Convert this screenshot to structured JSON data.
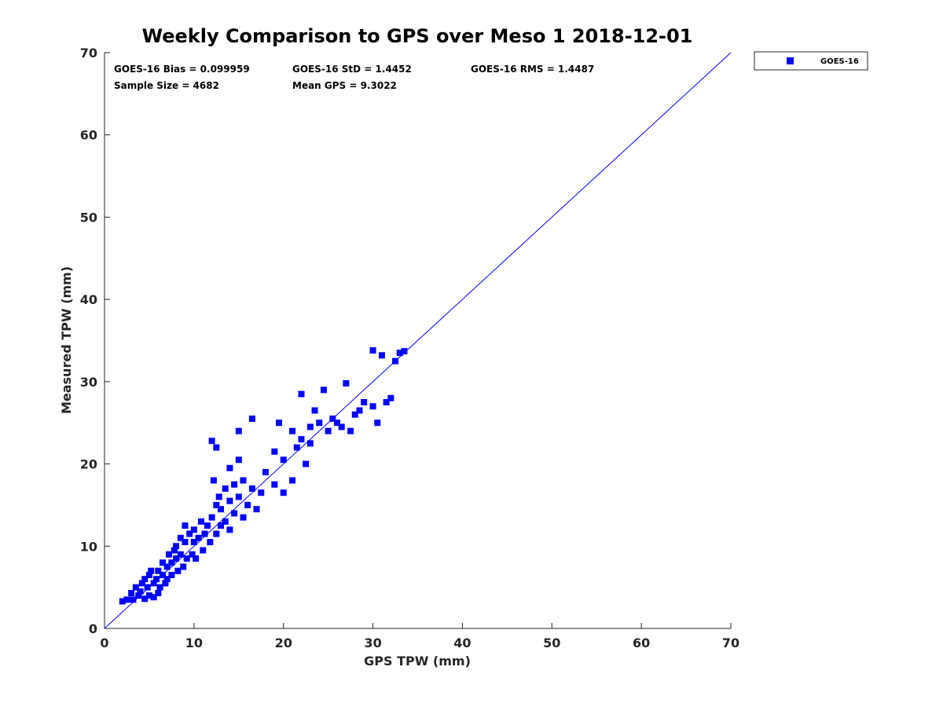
{
  "chart_data": {
    "type": "scatter",
    "title": "Weekly Comparison to GPS over Meso 1 2018-12-01",
    "xlabel": "GPS TPW (mm)",
    "ylabel": "Measured TPW (mm)",
    "xlim": [
      0,
      70
    ],
    "ylim": [
      0,
      70
    ],
    "xticks": [
      "0",
      "10",
      "20",
      "30",
      "40",
      "50",
      "60",
      "70"
    ],
    "yticks": [
      "0",
      "10",
      "20",
      "30",
      "40",
      "50",
      "60",
      "70"
    ],
    "legend": {
      "position": "top-right-outside",
      "entries": [
        "GOES-16"
      ]
    },
    "marker_color": "#0000ff",
    "reference_line": {
      "label": "1:1",
      "from": [
        0,
        0
      ],
      "to": [
        70,
        70
      ],
      "color": "#0000ff"
    },
    "stats": {
      "bias": "GOES-16 Bias = 0.099959",
      "std": "GOES-16 StD = 1.4452",
      "rms": "GOES-16 RMS = 1.4487",
      "sample_size": "Sample Size = 4682",
      "mean_gps": "Mean GPS = 9.3022"
    },
    "series": [
      {
        "name": "GOES-16",
        "points": [
          [
            2.0,
            3.3
          ],
          [
            2.5,
            3.5
          ],
          [
            3.0,
            4.3
          ],
          [
            3.2,
            3.5
          ],
          [
            3.5,
            5.0
          ],
          [
            3.8,
            4.0
          ],
          [
            4.0,
            4.5
          ],
          [
            4.2,
            5.5
          ],
          [
            4.5,
            6.0
          ],
          [
            4.5,
            3.6
          ],
          [
            4.8,
            5.0
          ],
          [
            5.0,
            6.5
          ],
          [
            5.0,
            4.0
          ],
          [
            5.2,
            7.0
          ],
          [
            5.5,
            5.5
          ],
          [
            5.5,
            3.8
          ],
          [
            5.8,
            6.0
          ],
          [
            6.0,
            7.0
          ],
          [
            6.0,
            4.3
          ],
          [
            6.2,
            5.0
          ],
          [
            6.5,
            6.5
          ],
          [
            6.5,
            8.0
          ],
          [
            6.8,
            5.5
          ],
          [
            7.0,
            7.5
          ],
          [
            7.0,
            6.0
          ],
          [
            7.2,
            9.0
          ],
          [
            7.5,
            8.0
          ],
          [
            7.5,
            6.5
          ],
          [
            7.8,
            9.5
          ],
          [
            8.0,
            10.0
          ],
          [
            8.0,
            8.5
          ],
          [
            8.2,
            7.0
          ],
          [
            8.5,
            11.0
          ],
          [
            8.5,
            9.0
          ],
          [
            8.8,
            7.5
          ],
          [
            9.0,
            10.5
          ],
          [
            9.0,
            12.5
          ],
          [
            9.2,
            8.5
          ],
          [
            9.5,
            11.5
          ],
          [
            9.8,
            9.0
          ],
          [
            10.0,
            10.5
          ],
          [
            10.0,
            12.0
          ],
          [
            10.2,
            8.5
          ],
          [
            10.5,
            11.0
          ],
          [
            10.8,
            13.0
          ],
          [
            11.0,
            9.5
          ],
          [
            11.2,
            11.5
          ],
          [
            11.5,
            12.5
          ],
          [
            11.8,
            10.5
          ],
          [
            12.0,
            13.5
          ],
          [
            12.2,
            18.0
          ],
          [
            12.5,
            15.0
          ],
          [
            12.5,
            11.5
          ],
          [
            12.8,
            16.0
          ],
          [
            13.0,
            12.5
          ],
          [
            13.0,
            14.5
          ],
          [
            13.5,
            17.0
          ],
          [
            13.5,
            13.0
          ],
          [
            14.0,
            15.5
          ],
          [
            14.0,
            12.0
          ],
          [
            14.5,
            17.5
          ],
          [
            14.5,
            14.0
          ],
          [
            15.0,
            16.0
          ],
          [
            15.0,
            20.5
          ],
          [
            15.5,
            13.5
          ],
          [
            15.5,
            18.0
          ],
          [
            16.0,
            15.0
          ],
          [
            16.5,
            17.0
          ],
          [
            17.0,
            14.5
          ],
          [
            17.5,
            16.5
          ],
          [
            12.0,
            22.8
          ],
          [
            12.5,
            22.0
          ],
          [
            14.0,
            19.5
          ],
          [
            15.0,
            24.0
          ],
          [
            16.5,
            25.5
          ],
          [
            18.0,
            19.0
          ],
          [
            19.0,
            17.5
          ],
          [
            19.5,
            25.0
          ],
          [
            20.0,
            16.5
          ],
          [
            20.0,
            20.5
          ],
          [
            21.0,
            24.0
          ],
          [
            21.5,
            22.0
          ],
          [
            22.0,
            23.0
          ],
          [
            22.5,
            20.0
          ],
          [
            23.0,
            24.5
          ],
          [
            23.5,
            26.5
          ],
          [
            24.0,
            25.0
          ],
          [
            24.5,
            29.0
          ],
          [
            25.0,
            24.0
          ],
          [
            25.5,
            25.5
          ],
          [
            26.0,
            25.0
          ],
          [
            26.5,
            24.5
          ],
          [
            27.0,
            29.8
          ],
          [
            27.5,
            24.0
          ],
          [
            28.0,
            26.0
          ],
          [
            28.5,
            26.5
          ],
          [
            29.0,
            27.5
          ],
          [
            30.0,
            33.8
          ],
          [
            30.5,
            25.0
          ],
          [
            31.0,
            33.2
          ],
          [
            31.5,
            27.5
          ],
          [
            32.0,
            28.0
          ],
          [
            32.5,
            32.5
          ],
          [
            33.0,
            33.5
          ],
          [
            33.5,
            33.7
          ],
          [
            30.0,
            27.0
          ],
          [
            22.0,
            28.5
          ],
          [
            23.0,
            22.5
          ],
          [
            21.0,
            18.0
          ],
          [
            19.0,
            21.5
          ]
        ]
      }
    ]
  }
}
